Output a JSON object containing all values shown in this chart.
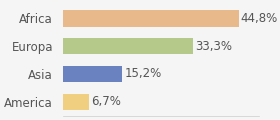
{
  "categories": [
    "America",
    "Asia",
    "Europa",
    "Africa"
  ],
  "values": [
    6.7,
    15.2,
    33.3,
    44.8
  ],
  "labels": [
    "6,7%",
    "15,2%",
    "33,3%",
    "44,8%"
  ],
  "bar_colors": [
    "#f0d080",
    "#6b82c0",
    "#b5c98a",
    "#e8b98a"
  ],
  "background_color": "#f5f5f5",
  "xlim": [
    0,
    50
  ],
  "label_fontsize": 8.5,
  "category_fontsize": 8.5
}
